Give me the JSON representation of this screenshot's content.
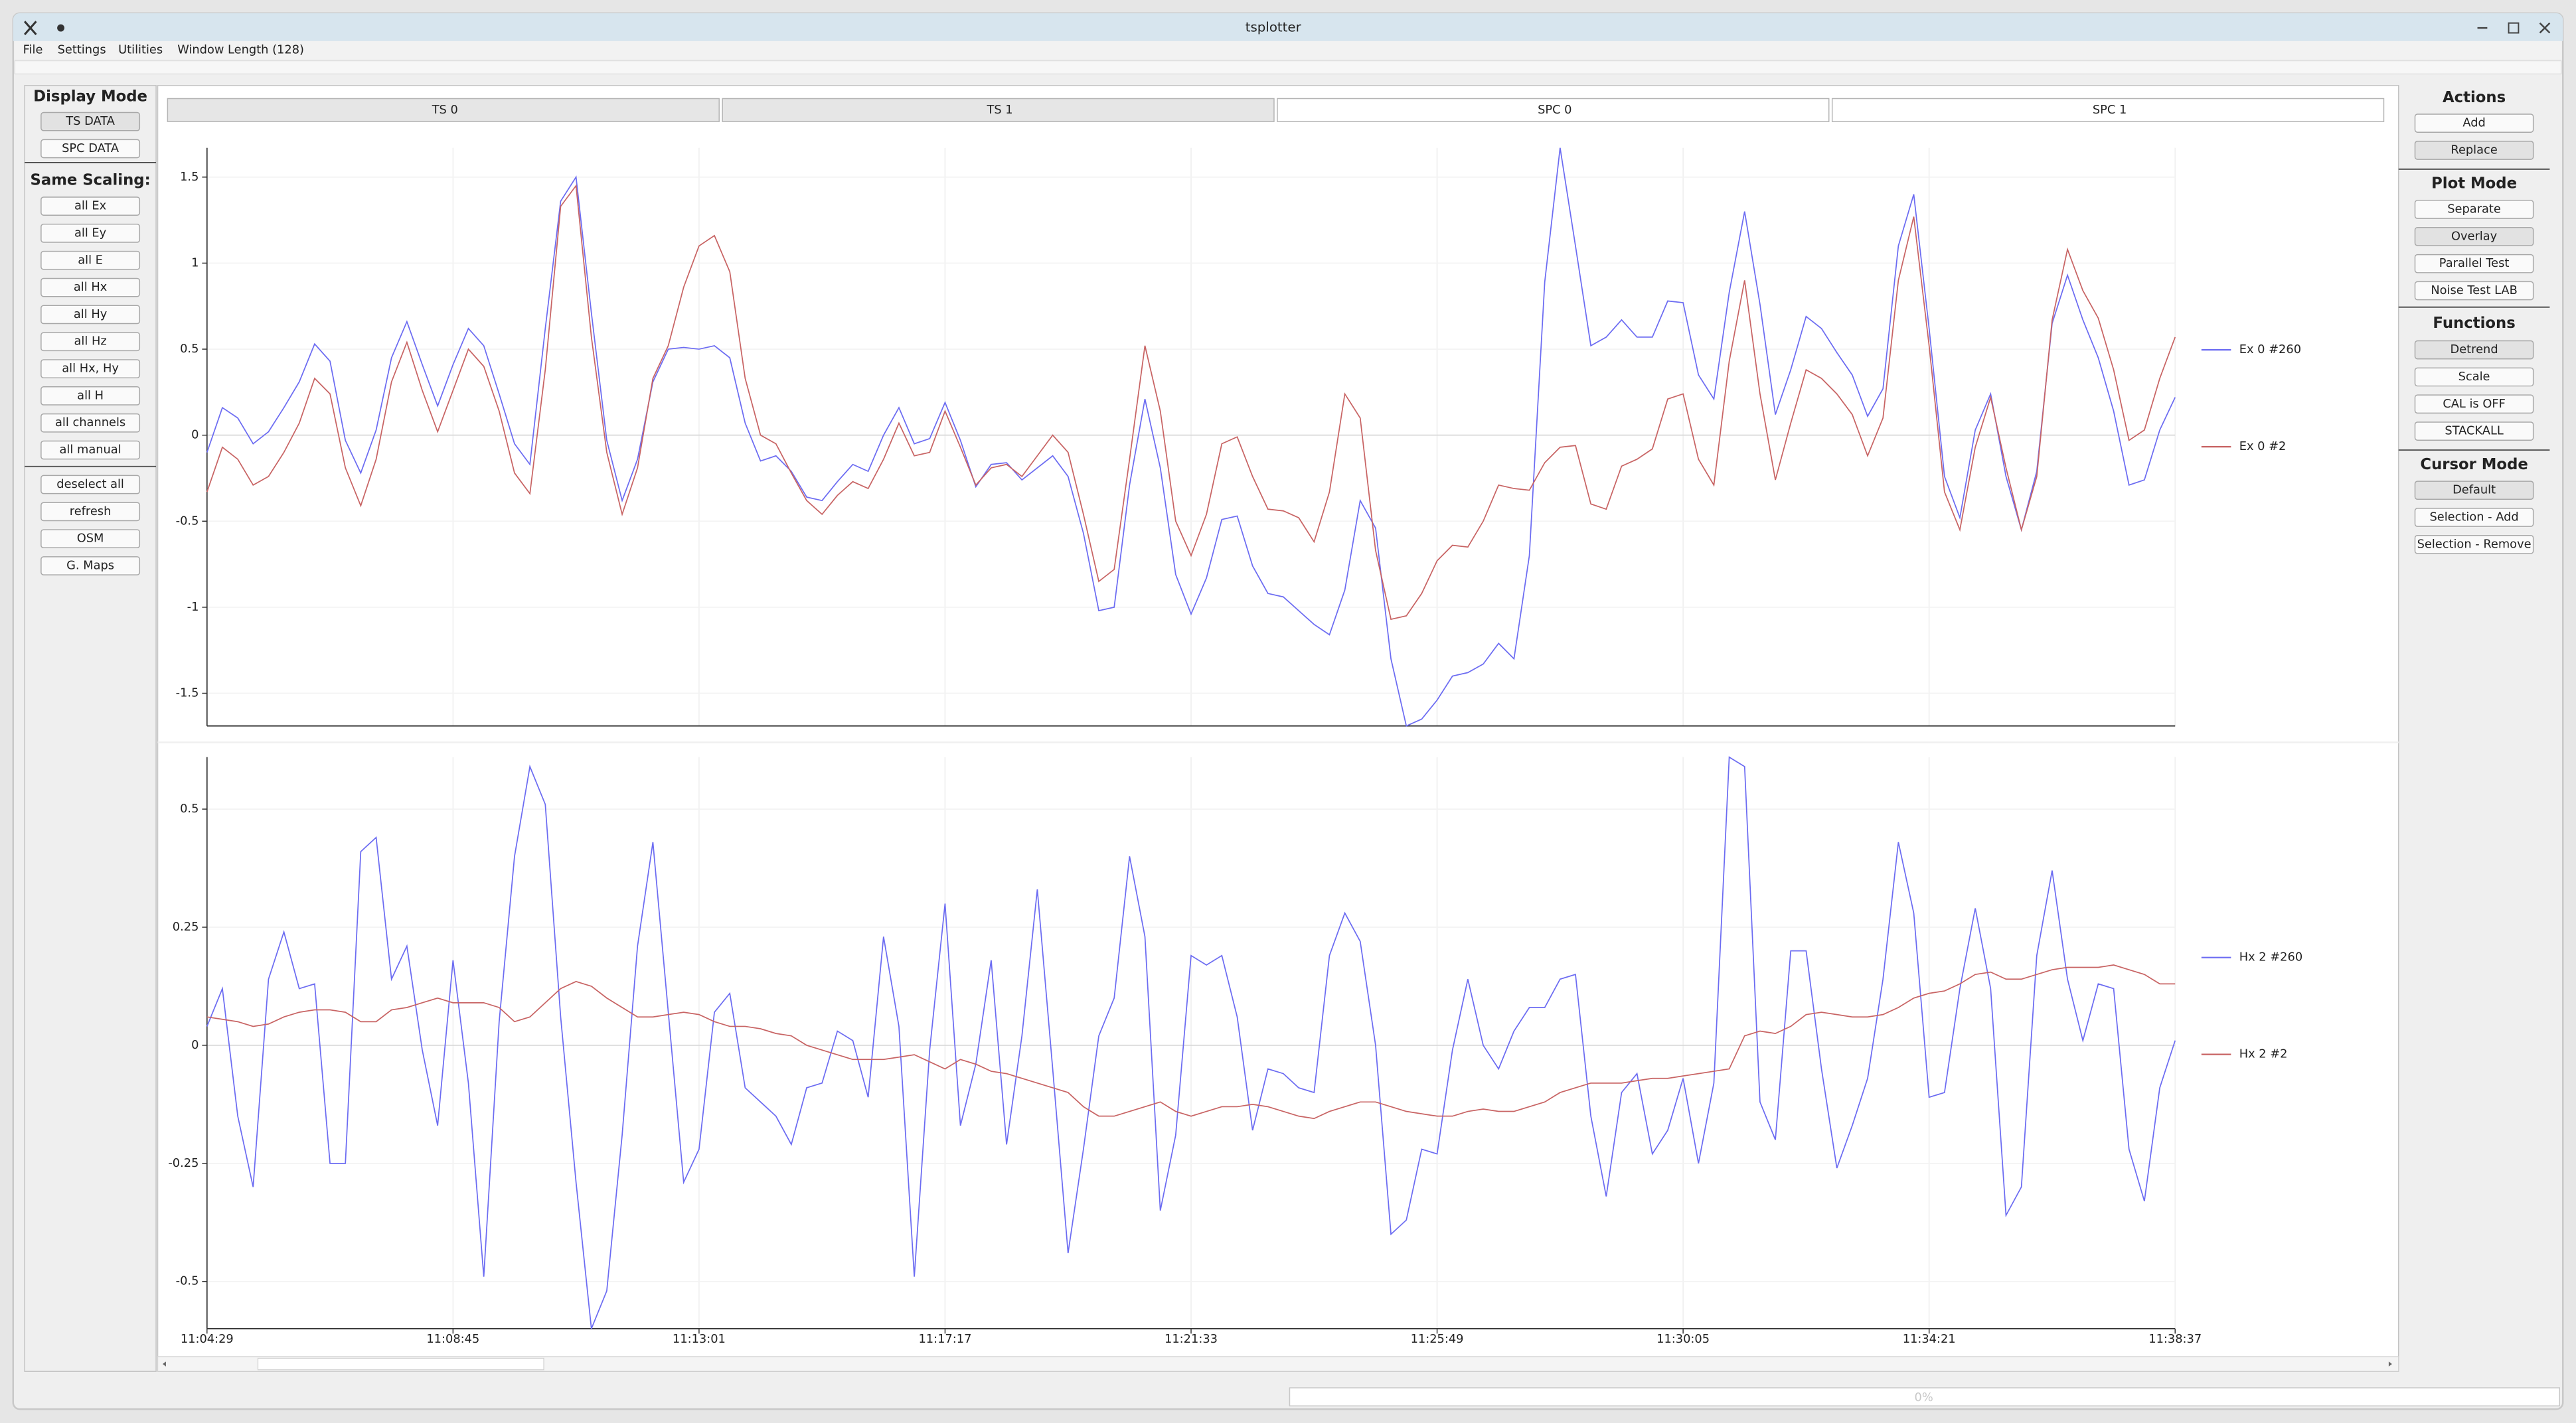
{
  "window": {
    "title": "tsplotter",
    "menu": [
      "File",
      "Settings",
      "Utilities",
      "Window Length (128)"
    ]
  },
  "left_panel": {
    "sections": [
      {
        "title": "Display Mode",
        "buttons": [
          "TS DATA",
          "SPC DATA"
        ],
        "active": 0
      },
      {
        "title": "Same Scaling:",
        "buttons": [
          "all Ex",
          "all Ey",
          "all E",
          "all Hx",
          "all Hy",
          "all Hz",
          "all Hx, Hy",
          "all H",
          "all channels",
          "all manual"
        ]
      },
      {
        "buttons": [
          "deselect all",
          "refresh",
          "OSM",
          "G. Maps"
        ]
      }
    ]
  },
  "tabs": {
    "labels": [
      "TS 0",
      "TS 1",
      "SPC 0",
      "SPC 1"
    ],
    "active": [
      0,
      1
    ]
  },
  "right_panel": {
    "sections": [
      {
        "title": "Actions",
        "buttons": [
          "Add",
          "Replace"
        ],
        "active": 1
      },
      {
        "title": "Plot Mode",
        "buttons": [
          "Separate",
          "Overlay",
          "Parallel Test",
          "Noise Test LAB"
        ],
        "active": 1
      },
      {
        "title": "Functions",
        "buttons": [
          "Detrend",
          "Scale",
          "CAL is OFF",
          "STACKALL"
        ],
        "active": 0
      },
      {
        "title": "Cursor Mode",
        "buttons": [
          "Default",
          "Selection - Add",
          "Selection - Remove"
        ],
        "active": 0
      }
    ]
  },
  "status": {
    "progress": "0%"
  },
  "chart_data": [
    {
      "type": "line",
      "grid": true,
      "legend": "right",
      "categories": [
        null,
        null,
        null,
        null,
        null,
        null,
        null,
        null,
        null,
        null,
        null,
        null,
        null,
        null,
        null,
        null,
        null,
        null,
        null,
        null,
        null,
        null,
        null,
        null,
        null,
        null,
        null,
        null,
        null,
        null,
        null,
        null,
        null,
        null,
        null,
        null,
        null,
        null,
        null,
        null,
        null,
        null,
        null,
        null,
        null,
        null,
        null,
        null,
        null,
        null,
        null,
        null,
        null,
        null,
        null,
        null,
        null,
        null,
        null,
        null,
        null,
        null,
        null,
        null,
        null,
        null,
        null,
        null,
        null,
        null,
        null,
        null,
        null,
        null,
        null,
        null,
        null,
        null,
        null,
        null,
        null,
        null,
        null,
        null,
        null,
        null,
        null,
        null,
        null,
        null,
        null,
        null,
        null,
        null,
        null,
        null,
        null,
        null,
        null,
        null,
        null,
        null,
        null,
        null,
        null,
        null,
        null,
        null,
        null,
        null,
        null,
        null,
        null,
        null,
        null,
        null,
        null,
        null,
        null,
        null,
        null,
        null,
        null,
        null,
        null,
        null,
        null,
        null,
        null
      ],
      "ylim": [
        -1.69,
        1.67
      ],
      "yticks": [
        -1.5,
        -1,
        -0.5,
        0,
        0.5,
        1,
        1.5
      ],
      "series": [
        {
          "name": "Ex 0 #260",
          "color": "#6c6cf2",
          "values": [
            -0.1,
            0.16,
            0.1,
            -0.05,
            0.02,
            0.16,
            0.31,
            0.53,
            0.43,
            -0.03,
            -0.22,
            0.03,
            0.45,
            0.66,
            0.41,
            0.17,
            0.41,
            0.62,
            0.52,
            0.24,
            -0.05,
            -0.17,
            0.62,
            1.36,
            1.5,
            0.71,
            -0.03,
            -0.38,
            -0.14,
            0.31,
            0.5,
            0.51,
            0.5,
            0.52,
            0.45,
            0.07,
            -0.15,
            -0.12,
            -0.21,
            -0.36,
            -0.38,
            -0.27,
            -0.17,
            -0.21,
            0,
            0.16,
            -0.05,
            -0.02,
            0.19,
            -0.03,
            -0.3,
            -0.17,
            -0.16,
            -0.26,
            -0.19,
            -0.12,
            -0.24,
            -0.57,
            -1.02,
            -1.0,
            -0.29,
            0.21,
            -0.19,
            -0.81,
            -1.04,
            -0.83,
            -0.49,
            -0.47,
            -0.76,
            -0.92,
            -0.94,
            -1.02,
            -1.1,
            -1.16,
            -0.9,
            -0.38,
            -0.54,
            -1.3,
            -1.69,
            -1.65,
            -1.54,
            -1.4,
            -1.38,
            -1.33,
            -1.21,
            -1.3,
            -0.7,
            0.89,
            1.67,
            1.1,
            0.52,
            0.57,
            0.67,
            0.57,
            0.57,
            0.78,
            0.77,
            0.35,
            0.21,
            0.83,
            1.3,
            0.76,
            0.12,
            0.38,
            0.69,
            0.62,
            0.48,
            0.35,
            0.11,
            0.27,
            1.1,
            1.4,
            0.62,
            -0.24,
            -0.48,
            0.03,
            0.24,
            -0.24,
            -0.55,
            -0.21,
            0.65,
            0.93,
            0.67,
            0.45,
            0.14,
            -0.29,
            -0.26,
            0.03,
            0.22
          ]
        },
        {
          "name": "Ex 0 #2",
          "color": "#c86464",
          "values": [
            -0.33,
            -0.07,
            -0.14,
            -0.29,
            -0.24,
            -0.1,
            0.07,
            0.33,
            0.24,
            -0.19,
            -0.41,
            -0.14,
            0.31,
            0.54,
            0.26,
            0.02,
            0.26,
            0.5,
            0.4,
            0.14,
            -0.22,
            -0.34,
            0.38,
            1.33,
            1.45,
            0.57,
            -0.1,
            -0.46,
            -0.19,
            0.33,
            0.52,
            0.86,
            1.1,
            1.16,
            0.95,
            0.33,
            0,
            -0.05,
            -0.22,
            -0.38,
            -0.46,
            -0.35,
            -0.27,
            -0.31,
            -0.14,
            0.07,
            -0.12,
            -0.1,
            0.14,
            -0.07,
            -0.29,
            -0.19,
            -0.17,
            -0.24,
            -0.12,
            0,
            -0.1,
            -0.46,
            -0.85,
            -0.78,
            -0.14,
            0.52,
            0.14,
            -0.5,
            -0.7,
            -0.46,
            -0.05,
            -0.01,
            -0.24,
            -0.43,
            -0.44,
            -0.48,
            -0.62,
            -0.33,
            0.24,
            0.1,
            -0.67,
            -1.07,
            -1.05,
            -0.92,
            -0.73,
            -0.64,
            -0.65,
            -0.5,
            -0.29,
            -0.31,
            -0.32,
            -0.16,
            -0.07,
            -0.06,
            -0.4,
            -0.43,
            -0.18,
            -0.14,
            -0.08,
            0.21,
            0.24,
            -0.14,
            -0.29,
            0.43,
            0.9,
            0.24,
            -0.26,
            0.07,
            0.38,
            0.33,
            0.24,
            0.12,
            -0.12,
            0.1,
            0.9,
            1.27,
            0.52,
            -0.33,
            -0.55,
            -0.07,
            0.22,
            -0.19,
            -0.55,
            -0.24,
            0.67,
            1.08,
            0.84,
            0.68,
            0.38,
            -0.03,
            0.03,
            0.33,
            0.57
          ]
        }
      ]
    },
    {
      "type": "line",
      "grid": true,
      "legend": "right",
      "categories": [
        "11:04:29",
        null,
        null,
        null,
        null,
        null,
        null,
        null,
        null,
        null,
        null,
        null,
        null,
        null,
        null,
        null,
        "11:08:45",
        null,
        null,
        null,
        null,
        null,
        null,
        null,
        null,
        null,
        null,
        null,
        null,
        null,
        null,
        null,
        "11:13:01",
        null,
        null,
        null,
        null,
        null,
        null,
        null,
        null,
        null,
        null,
        null,
        null,
        null,
        null,
        null,
        "11:17:17",
        null,
        null,
        null,
        null,
        null,
        null,
        null,
        null,
        null,
        null,
        null,
        null,
        null,
        null,
        null,
        "11:21:33",
        null,
        null,
        null,
        null,
        null,
        null,
        null,
        null,
        null,
        null,
        null,
        null,
        null,
        null,
        null,
        "11:25:49",
        null,
        null,
        null,
        null,
        null,
        null,
        null,
        null,
        null,
        null,
        null,
        null,
        null,
        null,
        null,
        "11:30:05",
        null,
        null,
        null,
        null,
        null,
        null,
        null,
        null,
        null,
        null,
        null,
        null,
        null,
        null,
        null,
        "11:34:21",
        null,
        null,
        null,
        null,
        null,
        null,
        null,
        null,
        null,
        null,
        null,
        null,
        null,
        null,
        null,
        "11:38:37"
      ],
      "ylim": [
        -0.6,
        0.61
      ],
      "yticks": [
        -0.5,
        -0.25,
        0,
        0.25,
        0.5
      ],
      "series": [
        {
          "name": "Hx 2 #260",
          "color": "#6c6cf2",
          "values": [
            0.04,
            0.12,
            -0.15,
            -0.3,
            0.14,
            0.24,
            0.12,
            0.13,
            -0.25,
            -0.25,
            0.41,
            0.44,
            0.14,
            0.21,
            -0.01,
            -0.17,
            0.18,
            -0.08,
            -0.49,
            0.05,
            0.4,
            0.59,
            0.51,
            0.06,
            -0.29,
            -0.6,
            -0.52,
            -0.19,
            0.21,
            0.43,
            0.07,
            -0.29,
            -0.22,
            0.07,
            0.11,
            -0.09,
            -0.12,
            -0.15,
            -0.21,
            -0.09,
            -0.08,
            0.03,
            0.01,
            -0.11,
            0.23,
            0.04,
            -0.49,
            -0.01,
            0.3,
            -0.17,
            -0.04,
            0.18,
            -0.21,
            0.02,
            0.33,
            -0.05,
            -0.44,
            -0.22,
            0.02,
            0.1,
            0.4,
            0.23,
            -0.35,
            -0.19,
            0.19,
            0.17,
            0.19,
            0.06,
            -0.18,
            -0.05,
            -0.06,
            -0.09,
            -0.1,
            0.19,
            0.28,
            0.22,
            0,
            -0.4,
            -0.37,
            -0.22,
            -0.23,
            -0.01,
            0.14,
            0,
            -0.05,
            0.03,
            0.08,
            0.08,
            0.14,
            0.15,
            -0.15,
            -0.32,
            -0.1,
            -0.06,
            -0.23,
            -0.18,
            -0.07,
            -0.25,
            -0.08,
            0.61,
            0.59,
            -0.12,
            -0.2,
            0.2,
            0.2,
            -0.05,
            -0.26,
            -0.17,
            -0.07,
            0.14,
            0.43,
            0.28,
            -0.11,
            -0.1,
            0.12,
            0.29,
            0.12,
            -0.36,
            -0.3,
            0.19,
            0.37,
            0.14,
            0.01,
            0.13,
            0.12,
            -0.22,
            -0.33,
            -0.09,
            0.01
          ]
        },
        {
          "name": "Hx 2 #2",
          "color": "#c86464",
          "values": [
            0.06,
            0.055,
            0.05,
            0.04,
            0.045,
            0.06,
            0.07,
            0.075,
            0.075,
            0.07,
            0.05,
            0.05,
            0.075,
            0.08,
            0.09,
            0.1,
            0.09,
            0.09,
            0.09,
            0.08,
            0.05,
            0.06,
            0.09,
            0.12,
            0.135,
            0.125,
            0.1,
            0.08,
            0.06,
            0.06,
            0.065,
            0.07,
            0.065,
            0.05,
            0.04,
            0.04,
            0.035,
            0.025,
            0.02,
            0.0,
            -0.01,
            -0.02,
            -0.03,
            -0.03,
            -0.03,
            -0.025,
            -0.02,
            -0.035,
            -0.05,
            -0.03,
            -0.04,
            -0.055,
            -0.06,
            -0.07,
            -0.08,
            -0.09,
            -0.1,
            -0.13,
            -0.15,
            -0.15,
            -0.14,
            -0.13,
            -0.12,
            -0.14,
            -0.15,
            -0.14,
            -0.13,
            -0.13,
            -0.125,
            -0.13,
            -0.14,
            -0.15,
            -0.155,
            -0.14,
            -0.13,
            -0.12,
            -0.12,
            -0.13,
            -0.14,
            -0.145,
            -0.15,
            -0.15,
            -0.14,
            -0.135,
            -0.14,
            -0.14,
            -0.13,
            -0.12,
            -0.1,
            -0.09,
            -0.08,
            -0.08,
            -0.08,
            -0.075,
            -0.07,
            -0.07,
            -0.065,
            -0.06,
            -0.055,
            -0.05,
            0.02,
            0.03,
            0.025,
            0.04,
            0.065,
            0.07,
            0.065,
            0.06,
            0.06,
            0.065,
            0.08,
            0.1,
            0.11,
            0.115,
            0.13,
            0.15,
            0.155,
            0.14,
            0.14,
            0.15,
            0.16,
            0.165,
            0.165,
            0.165,
            0.17,
            0.16,
            0.15,
            0.13,
            0.13
          ]
        }
      ]
    }
  ]
}
